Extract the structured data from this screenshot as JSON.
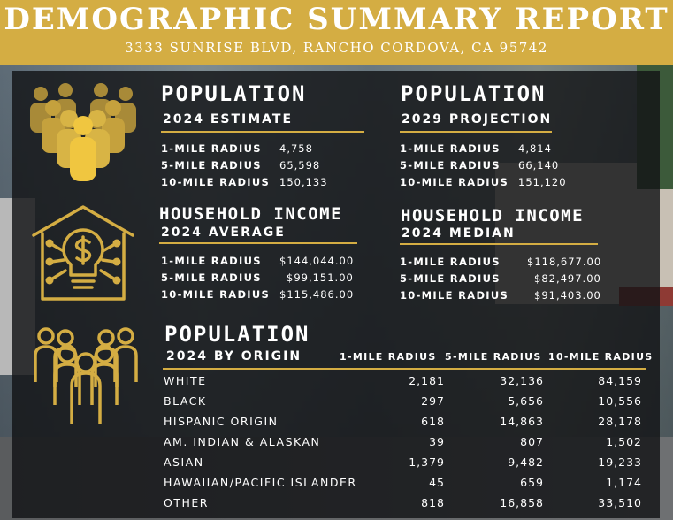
{
  "header": {
    "title": "DEMOGRAPHIC SUMMARY REPORT",
    "address": "3333 SUNRISE BLVD, RANCHO CORDOVA, CA 95742"
  },
  "colors": {
    "gold": "#d4ad43",
    "overlay": "#121416",
    "text": "#ffffff"
  },
  "icons": {
    "population": "people-group-icon",
    "income": "house-lightbulb-dollar-icon",
    "origin": "people-outline-icon"
  },
  "population_2024": {
    "title": "POPULATION",
    "subtitle": "2024 ESTIMATE",
    "rows": [
      {
        "label": "1-MILE RADIUS",
        "value": "4,758"
      },
      {
        "label": "5-MILE RADIUS",
        "value": "65,598"
      },
      {
        "label": "10-MILE RADIUS",
        "value": "150,133"
      }
    ]
  },
  "population_2029": {
    "title": "POPULATION",
    "subtitle": "2029 PROJECTION",
    "rows": [
      {
        "label": "1-MILE RADIUS",
        "value": "4,814"
      },
      {
        "label": "5-MILE RADIUS",
        "value": "66,140"
      },
      {
        "label": "10-MILE RADIUS",
        "value": "151,120"
      }
    ]
  },
  "income_average": {
    "title": "HOUSEHOLD INCOME",
    "subtitle": "2024 AVERAGE",
    "rows": [
      {
        "label": "1-MILE RADIUS",
        "value": "$144,044.00"
      },
      {
        "label": "5-MILE RADIUS",
        "value": "$99,151.00"
      },
      {
        "label": "10-MILE RADIUS",
        "value": "$115,486.00"
      }
    ]
  },
  "income_median": {
    "title": "HOUSEHOLD INCOME",
    "subtitle": "2024 MEDIAN",
    "rows": [
      {
        "label": "1-MILE RADIUS",
        "value": "$118,677.00"
      },
      {
        "label": "5-MILE RADIUS",
        "value": "$82,497.00"
      },
      {
        "label": "10-MILE RADIUS",
        "value": "$91,403.00"
      }
    ]
  },
  "origin": {
    "title": "POPULATION",
    "subtitle": "2024 BY ORIGIN",
    "columns": [
      "1-MILE RADIUS",
      "5-MILE RADIUS",
      "10-MILE RADIUS"
    ],
    "rows": [
      {
        "name": "WHITE",
        "v1": "2,181",
        "v5": "32,136",
        "v10": "84,159"
      },
      {
        "name": "BLACK",
        "v1": "297",
        "v5": "5,656",
        "v10": "10,556"
      },
      {
        "name": "HISPANIC ORIGIN",
        "v1": "618",
        "v5": "14,863",
        "v10": "28,178"
      },
      {
        "name": "AM. INDIAN & ALASKAN",
        "v1": "39",
        "v5": "807",
        "v10": "1,502"
      },
      {
        "name": "ASIAN",
        "v1": "1,379",
        "v5": "9,482",
        "v10": "19,233"
      },
      {
        "name": "HAWAIIAN/PACIFIC ISLANDER",
        "v1": "45",
        "v5": "659",
        "v10": "1,174"
      },
      {
        "name": "OTHER",
        "v1": "818",
        "v5": "16,858",
        "v10": "33,510"
      }
    ]
  }
}
